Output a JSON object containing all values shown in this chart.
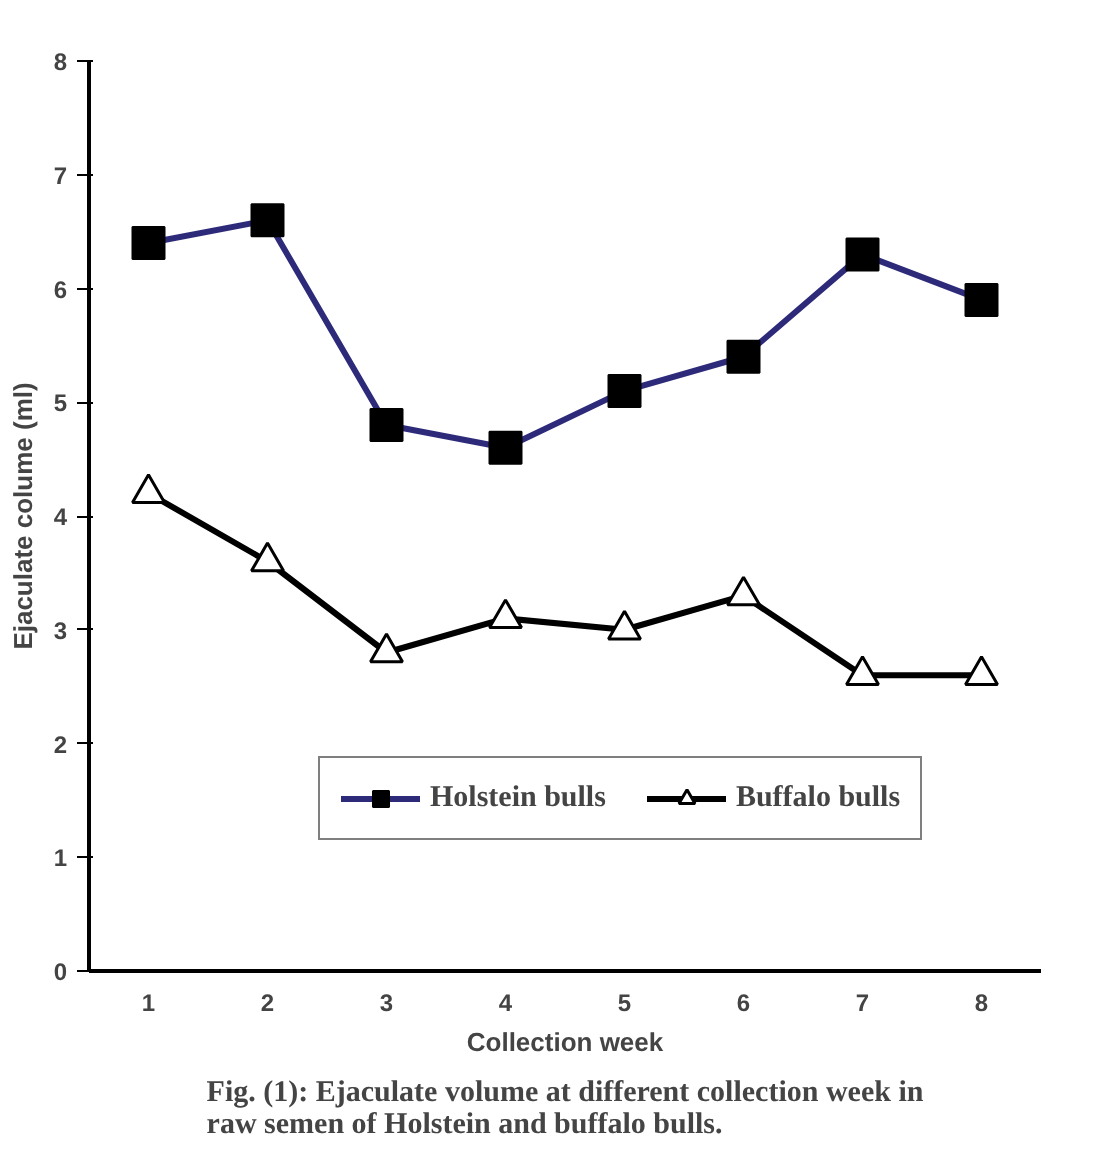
{
  "chart_data": {
    "type": "line",
    "xlabel": "Collection week",
    "ylabel": "Ejaculate colume (ml)",
    "categories": [
      "1",
      "2",
      "3",
      "4",
      "5",
      "6",
      "7",
      "8"
    ],
    "series": [
      {
        "name": "Holstein bulls",
        "color": "#2e2a7a",
        "marker": "square",
        "values": [
          6.4,
          6.6,
          4.8,
          4.6,
          5.1,
          5.4,
          6.3,
          5.9
        ]
      },
      {
        "name": "Buffalo bulls",
        "color": "#000000",
        "marker": "triangle",
        "values": [
          4.2,
          3.6,
          2.8,
          3.1,
          3.0,
          3.3,
          2.6,
          2.6
        ]
      }
    ],
    "ylim": [
      0,
      8
    ],
    "yticks": [
      0,
      1,
      2,
      3,
      4,
      5,
      6,
      7,
      8
    ],
    "grid": false,
    "legend": "bottom",
    "annotations": [
      "Fig. (1): Ejaculate volume at different collection week in\nraw semen of Holstein and buffalo bulls."
    ]
  }
}
